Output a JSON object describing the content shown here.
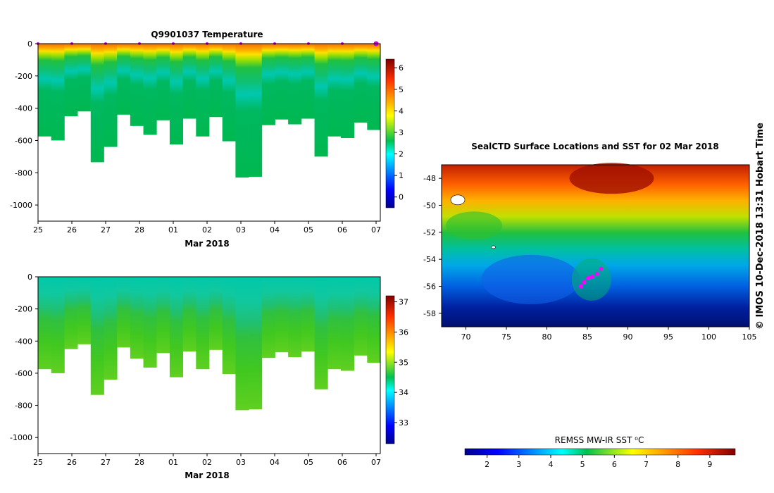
{
  "chart_data": [
    {
      "type": "heatmap",
      "title": "Q9901037  Temperature",
      "xlabel": "Mar 2018",
      "ylabel": "",
      "x_ticks": [
        "25",
        "26",
        "27",
        "28",
        "01",
        "02",
        "03",
        "04",
        "05",
        "06",
        "07"
      ],
      "y_ticks": [
        0,
        -200,
        -400,
        -600,
        -800,
        -1000
      ],
      "ylim": [
        -1100,
        0
      ],
      "colorbar": {
        "min": -0.5,
        "max": 6.4,
        "ticks": [
          0,
          1,
          2,
          3,
          4,
          5,
          6
        ]
      },
      "profiles_max_depth": [
        -575,
        -600,
        -450,
        -420,
        -735,
        -640,
        -440,
        -510,
        -565,
        -475,
        -625,
        -465,
        -575,
        -455,
        -605,
        -830,
        -825,
        -505,
        -470,
        -500,
        -465,
        -700,
        -575,
        -585,
        -490,
        -535
      ],
      "surface_markers": [
        "25",
        "26",
        "27",
        "28",
        "01",
        "02",
        "03",
        "04",
        "05",
        "06",
        "07"
      ]
    },
    {
      "type": "heatmap",
      "title": "",
      "xlabel": "Mar 2018",
      "ylabel": "",
      "x_ticks": [
        "25",
        "26",
        "27",
        "28",
        "01",
        "02",
        "03",
        "04",
        "05",
        "06",
        "07"
      ],
      "y_ticks": [
        0,
        -200,
        -400,
        -600,
        -800,
        -1000
      ],
      "ylim": [
        -1100,
        0
      ],
      "colorbar": {
        "min": 32.3,
        "max": 37.2,
        "ticks": [
          33,
          34,
          35,
          36,
          37
        ]
      },
      "profiles_max_depth": [
        -575,
        -600,
        -450,
        -420,
        -735,
        -640,
        -440,
        -510,
        -565,
        -475,
        -625,
        -465,
        -575,
        -455,
        -605,
        -830,
        -825,
        -505,
        -470,
        -500,
        -465,
        -700,
        -575,
        -585,
        -490,
        -535
      ]
    },
    {
      "type": "heatmap",
      "title": "SealCTD Surface Locations and SST for 02 Mar 2018",
      "xlabel": "",
      "ylabel": "",
      "x_ticks": [
        70,
        75,
        80,
        85,
        90,
        95,
        100,
        105
      ],
      "y_ticks": [
        -48,
        -50,
        -52,
        -54,
        -56,
        -58
      ],
      "xlim": [
        67,
        105
      ],
      "ylim": [
        -59,
        -47
      ],
      "side_label": "© IMOS 10-Dec-2018 13:31 Hobart Time",
      "colorbar": {
        "label": "REMSS MW-IR SST ⁰C",
        "min": 1.3,
        "max": 9.8,
        "ticks": [
          2,
          3,
          4,
          5,
          6,
          7,
          8,
          9
        ]
      },
      "seal_locations": [
        [
          84.2,
          -56.0
        ],
        [
          84.6,
          -55.7
        ],
        [
          85.1,
          -55.4
        ],
        [
          85.6,
          -55.3
        ],
        [
          86.2,
          -55.1
        ],
        [
          86.7,
          -54.7
        ]
      ]
    }
  ]
}
